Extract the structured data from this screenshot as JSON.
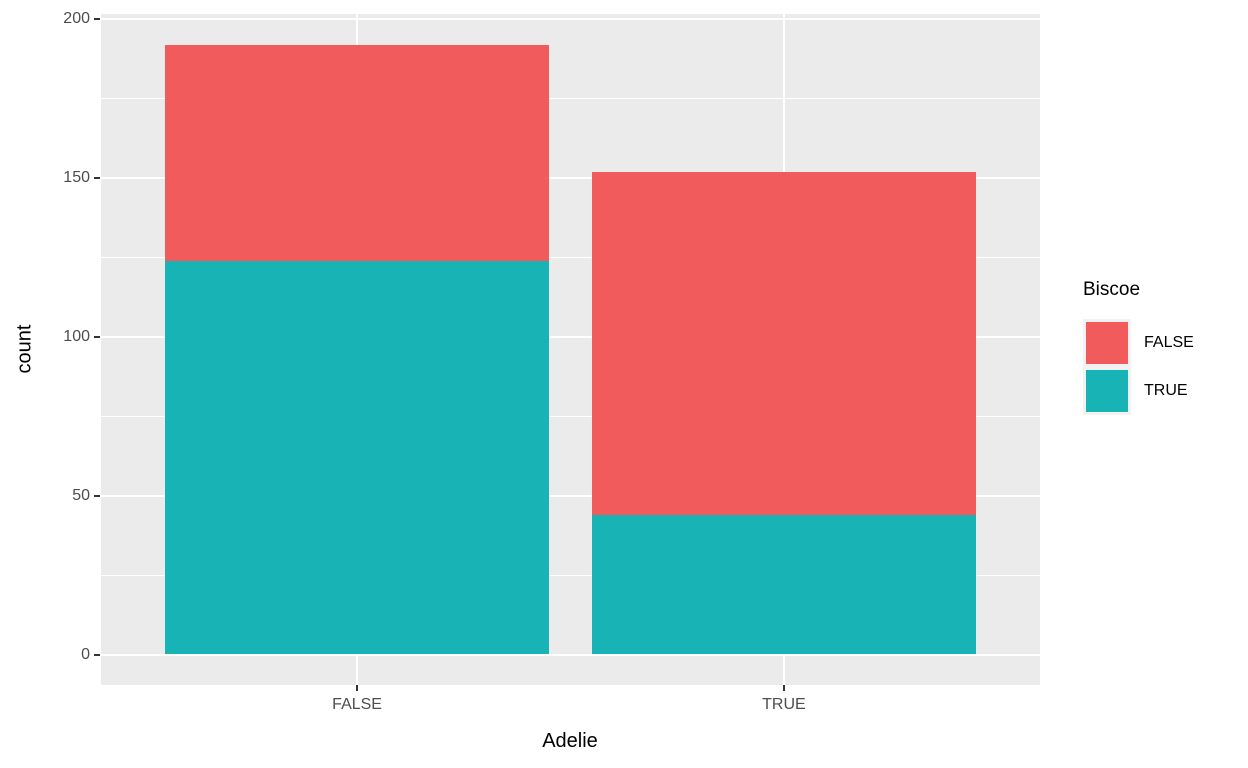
{
  "chart_data": {
    "type": "bar",
    "stacked": true,
    "title": "",
    "xlabel": "Adelie",
    "ylabel": "count",
    "categories": [
      "FALSE",
      "TRUE"
    ],
    "series": [
      {
        "name": "FALSE",
        "color": "#F25B5B",
        "values": [
          68,
          108
        ]
      },
      {
        "name": "TRUE",
        "color": "#18B3B4",
        "values": [
          124,
          44
        ]
      }
    ],
    "stack_order_bottom_to_top": [
      "TRUE",
      "FALSE"
    ],
    "stack_totals": [
      192,
      152
    ],
    "y_ticks": [
      0,
      50,
      100,
      150,
      200
    ],
    "y_minor_ticks": [
      25,
      75,
      125,
      175
    ],
    "ylim": [
      0,
      200
    ],
    "y_range_displayed": [
      -9.6,
      201.6
    ],
    "bar_width_fraction": 0.9,
    "grid": true,
    "legend": {
      "title": "Biscoe",
      "position": "right",
      "items": [
        {
          "label": "FALSE"
        },
        {
          "label": "TRUE"
        }
      ]
    },
    "colors": {
      "panel_background": "#EBEBEB",
      "gridline": "#FFFFFF",
      "tick_mark": "#333333",
      "tick_label": "#4D4D4D",
      "axis_title": "#000000",
      "legend_key_background": "#F2F2F2"
    }
  }
}
